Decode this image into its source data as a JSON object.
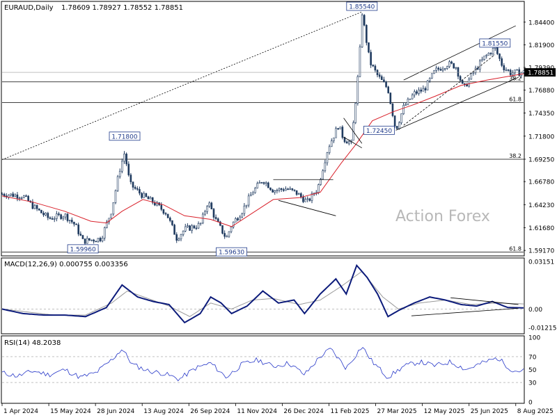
{
  "header": {
    "symbol": "EURAUD,Daily",
    "ohlc": "1.78609 1.78927 1.78552 1.78851"
  },
  "watermark": "Action Forex",
  "colors": {
    "candles": "#1f3a5f",
    "ma": "#d9202a",
    "macd": "#0b1a7a",
    "signal": "#9a9a9a",
    "rsi": "#2536c8",
    "trendline": "#000000",
    "grid": "#c8c8c8"
  },
  "chart_data": [
    {
      "type": "candlestick",
      "name": "price",
      "ylim": [
        1.5872,
        1.8654
      ],
      "yticks": [
        "1.84400",
        "1.81900",
        "1.79390",
        "1.76880",
        "1.74350",
        "1.71800",
        "1.69250",
        "1.66780",
        "1.64230",
        "1.61680",
        "1.59170"
      ],
      "current_price_label": "1.78851",
      "date_labels": [
        "1 Apr 2024",
        "15 May 2024",
        "28 Jun 2024",
        "13 Aug 2024",
        "26 Sep 2024",
        "11 Nov 2024",
        "26 Dec 2024",
        "11 Feb 2025",
        "27 Mar 2025",
        "12 May 2025",
        "25 Jun 2025",
        "8 Aug 2025"
      ],
      "key_points": [
        {
          "x": 0.0,
          "y": 1.654
        },
        {
          "x": 0.04,
          "y": 1.652
        },
        {
          "x": 0.06,
          "y": 1.64
        },
        {
          "x": 0.09,
          "y": 1.627
        },
        {
          "x": 0.12,
          "y": 1.631
        },
        {
          "x": 0.14,
          "y": 1.62
        },
        {
          "x": 0.155,
          "y": 1.602
        },
        {
          "x": 0.19,
          "y": 1.605
        },
        {
          "x": 0.21,
          "y": 1.636
        },
        {
          "x": 0.225,
          "y": 1.68
        },
        {
          "x": 0.235,
          "y": 1.7
        },
        {
          "x": 0.245,
          "y": 1.665
        },
        {
          "x": 0.27,
          "y": 1.652
        },
        {
          "x": 0.29,
          "y": 1.645
        },
        {
          "x": 0.315,
          "y": 1.633
        },
        {
          "x": 0.335,
          "y": 1.605
        },
        {
          "x": 0.35,
          "y": 1.615
        },
        {
          "x": 0.38,
          "y": 1.62
        },
        {
          "x": 0.395,
          "y": 1.646
        },
        {
          "x": 0.41,
          "y": 1.625
        },
        {
          "x": 0.43,
          "y": 1.605
        },
        {
          "x": 0.44,
          "y": 1.62
        },
        {
          "x": 0.46,
          "y": 1.635
        },
        {
          "x": 0.48,
          "y": 1.656
        },
        {
          "x": 0.5,
          "y": 1.67
        },
        {
          "x": 0.52,
          "y": 1.658
        },
        {
          "x": 0.545,
          "y": 1.66
        },
        {
          "x": 0.565,
          "y": 1.655
        },
        {
          "x": 0.585,
          "y": 1.645
        },
        {
          "x": 0.605,
          "y": 1.66
        },
        {
          "x": 0.625,
          "y": 1.705
        },
        {
          "x": 0.645,
          "y": 1.73
        },
        {
          "x": 0.655,
          "y": 1.715
        },
        {
          "x": 0.67,
          "y": 1.71
        },
        {
          "x": 0.685,
          "y": 1.8
        },
        {
          "x": 0.69,
          "y": 1.8554
        },
        {
          "x": 0.705,
          "y": 1.8
        },
        {
          "x": 0.72,
          "y": 1.785
        },
        {
          "x": 0.74,
          "y": 1.77
        },
        {
          "x": 0.755,
          "y": 1.7245
        },
        {
          "x": 0.77,
          "y": 1.75
        },
        {
          "x": 0.79,
          "y": 1.765
        },
        {
          "x": 0.81,
          "y": 1.77
        },
        {
          "x": 0.83,
          "y": 1.79
        },
        {
          "x": 0.855,
          "y": 1.798
        },
        {
          "x": 0.87,
          "y": 1.795
        },
        {
          "x": 0.885,
          "y": 1.77
        },
        {
          "x": 0.9,
          "y": 1.785
        },
        {
          "x": 0.925,
          "y": 1.805
        },
        {
          "x": 0.945,
          "y": 1.8155
        },
        {
          "x": 0.96,
          "y": 1.795
        },
        {
          "x": 0.975,
          "y": 1.788
        },
        {
          "x": 1.0,
          "y": 1.7885
        }
      ],
      "ma_points": [
        {
          "x": 0.0,
          "y": 1.652
        },
        {
          "x": 0.06,
          "y": 1.645
        },
        {
          "x": 0.12,
          "y": 1.635
        },
        {
          "x": 0.17,
          "y": 1.624
        },
        {
          "x": 0.2,
          "y": 1.622
        },
        {
          "x": 0.23,
          "y": 1.635
        },
        {
          "x": 0.27,
          "y": 1.648
        },
        {
          "x": 0.31,
          "y": 1.642
        },
        {
          "x": 0.35,
          "y": 1.63
        },
        {
          "x": 0.4,
          "y": 1.626
        },
        {
          "x": 0.44,
          "y": 1.618
        },
        {
          "x": 0.48,
          "y": 1.633
        },
        {
          "x": 0.52,
          "y": 1.648
        },
        {
          "x": 0.57,
          "y": 1.65
        },
        {
          "x": 0.61,
          "y": 1.656
        },
        {
          "x": 0.65,
          "y": 1.688
        },
        {
          "x": 0.68,
          "y": 1.71
        },
        {
          "x": 0.71,
          "y": 1.735
        },
        {
          "x": 0.75,
          "y": 1.745
        },
        {
          "x": 0.79,
          "y": 1.753
        },
        {
          "x": 0.83,
          "y": 1.762
        },
        {
          "x": 0.88,
          "y": 1.774
        },
        {
          "x": 0.93,
          "y": 1.78
        },
        {
          "x": 1.0,
          "y": 1.787
        }
      ],
      "labels": [
        {
          "text": "1.85540",
          "x": 0.69,
          "y": 1.8554
        },
        {
          "text": "1.81550",
          "x": 0.945,
          "y": 1.8155
        },
        {
          "text": "1.71800",
          "x": 0.235,
          "y": 1.718
        },
        {
          "text": "1.72450",
          "x": 0.755,
          "y": 1.7245
        },
        {
          "text": "1.59960",
          "x": 0.155,
          "y": 1.5996
        },
        {
          "text": "1.59630",
          "x": 0.44,
          "y": 1.5963
        }
      ],
      "fib_levels": [
        {
          "text": "38.2",
          "y": 1.6925
        },
        {
          "text": "61.8",
          "y": 1.755
        },
        {
          "text": "38.2",
          "y": 1.778
        },
        {
          "text": "61.8",
          "y": 1.59
        }
      ]
    },
    {
      "type": "line",
      "name": "MACD(12,26,9) 0.000755 0.003356",
      "ylim": [
        -0.0155,
        0.033
      ],
      "yticks": [
        "0.03151",
        "0.00",
        "-0.012158"
      ],
      "series": [
        {
          "name": "macd",
          "points": [
            {
              "x": 0.0,
              "y": 0.0
            },
            {
              "x": 0.04,
              "y": -0.003
            },
            {
              "x": 0.08,
              "y": -0.004
            },
            {
              "x": 0.12,
              "y": -0.004
            },
            {
              "x": 0.16,
              "y": -0.005
            },
            {
              "x": 0.2,
              "y": 0.001
            },
            {
              "x": 0.23,
              "y": 0.016
            },
            {
              "x": 0.26,
              "y": 0.008
            },
            {
              "x": 0.29,
              "y": 0.005
            },
            {
              "x": 0.32,
              "y": 0.003
            },
            {
              "x": 0.35,
              "y": -0.009
            },
            {
              "x": 0.38,
              "y": -0.003
            },
            {
              "x": 0.4,
              "y": 0.008
            },
            {
              "x": 0.42,
              "y": 0.004
            },
            {
              "x": 0.44,
              "y": -0.003
            },
            {
              "x": 0.47,
              "y": 0.002
            },
            {
              "x": 0.5,
              "y": 0.012
            },
            {
              "x": 0.53,
              "y": 0.004
            },
            {
              "x": 0.56,
              "y": 0.006
            },
            {
              "x": 0.58,
              "y": -0.003
            },
            {
              "x": 0.61,
              "y": 0.01
            },
            {
              "x": 0.64,
              "y": 0.02
            },
            {
              "x": 0.66,
              "y": 0.01
            },
            {
              "x": 0.68,
              "y": 0.029
            },
            {
              "x": 0.7,
              "y": 0.021
            },
            {
              "x": 0.72,
              "y": 0.01
            },
            {
              "x": 0.74,
              "y": -0.005
            },
            {
              "x": 0.76,
              "y": -0.001
            },
            {
              "x": 0.79,
              "y": 0.004
            },
            {
              "x": 0.82,
              "y": 0.008
            },
            {
              "x": 0.85,
              "y": 0.006
            },
            {
              "x": 0.88,
              "y": 0.003
            },
            {
              "x": 0.91,
              "y": 0.002
            },
            {
              "x": 0.94,
              "y": 0.005
            },
            {
              "x": 0.97,
              "y": 0.001
            },
            {
              "x": 1.0,
              "y": 0.0008
            }
          ]
        },
        {
          "name": "signal",
          "points": [
            {
              "x": 0.0,
              "y": 0.0
            },
            {
              "x": 0.05,
              "y": -0.002
            },
            {
              "x": 0.1,
              "y": -0.004
            },
            {
              "x": 0.16,
              "y": -0.004
            },
            {
              "x": 0.21,
              "y": 0.004
            },
            {
              "x": 0.24,
              "y": 0.012
            },
            {
              "x": 0.28,
              "y": 0.007
            },
            {
              "x": 0.32,
              "y": 0.002
            },
            {
              "x": 0.36,
              "y": -0.005
            },
            {
              "x": 0.4,
              "y": 0.004
            },
            {
              "x": 0.44,
              "y": 0.0
            },
            {
              "x": 0.48,
              "y": 0.006
            },
            {
              "x": 0.52,
              "y": 0.007
            },
            {
              "x": 0.57,
              "y": 0.003
            },
            {
              "x": 0.61,
              "y": 0.006
            },
            {
              "x": 0.65,
              "y": 0.015
            },
            {
              "x": 0.69,
              "y": 0.025
            },
            {
              "x": 0.73,
              "y": 0.008
            },
            {
              "x": 0.76,
              "y": 0.0
            },
            {
              "x": 0.8,
              "y": 0.004
            },
            {
              "x": 0.85,
              "y": 0.006
            },
            {
              "x": 0.9,
              "y": 0.003
            },
            {
              "x": 0.95,
              "y": 0.004
            },
            {
              "x": 1.0,
              "y": 0.0034
            }
          ]
        }
      ]
    },
    {
      "type": "line",
      "name": "RSI(14) 48.2038",
      "ylim": [
        0,
        100
      ],
      "yticks": [
        "100",
        "70",
        "50",
        "30",
        "0"
      ],
      "series": [
        {
          "name": "rsi",
          "points": [
            {
              "x": 0.0,
              "y": 45
            },
            {
              "x": 0.03,
              "y": 40
            },
            {
              "x": 0.06,
              "y": 48
            },
            {
              "x": 0.09,
              "y": 42
            },
            {
              "x": 0.12,
              "y": 50
            },
            {
              "x": 0.15,
              "y": 38
            },
            {
              "x": 0.18,
              "y": 45
            },
            {
              "x": 0.21,
              "y": 65
            },
            {
              "x": 0.23,
              "y": 82
            },
            {
              "x": 0.25,
              "y": 58
            },
            {
              "x": 0.28,
              "y": 48
            },
            {
              "x": 0.31,
              "y": 44
            },
            {
              "x": 0.34,
              "y": 35
            },
            {
              "x": 0.37,
              "y": 52
            },
            {
              "x": 0.4,
              "y": 60
            },
            {
              "x": 0.43,
              "y": 38
            },
            {
              "x": 0.46,
              "y": 58
            },
            {
              "x": 0.49,
              "y": 65
            },
            {
              "x": 0.52,
              "y": 55
            },
            {
              "x": 0.55,
              "y": 60
            },
            {
              "x": 0.58,
              "y": 42
            },
            {
              "x": 0.61,
              "y": 70
            },
            {
              "x": 0.63,
              "y": 82
            },
            {
              "x": 0.66,
              "y": 52
            },
            {
              "x": 0.69,
              "y": 86
            },
            {
              "x": 0.71,
              "y": 62
            },
            {
              "x": 0.74,
              "y": 38
            },
            {
              "x": 0.77,
              "y": 55
            },
            {
              "x": 0.8,
              "y": 62
            },
            {
              "x": 0.83,
              "y": 56
            },
            {
              "x": 0.86,
              "y": 62
            },
            {
              "x": 0.89,
              "y": 50
            },
            {
              "x": 0.92,
              "y": 60
            },
            {
              "x": 0.95,
              "y": 68
            },
            {
              "x": 0.98,
              "y": 48
            },
            {
              "x": 1.0,
              "y": 48.2
            }
          ]
        }
      ],
      "current_value": "48.2038"
    }
  ]
}
